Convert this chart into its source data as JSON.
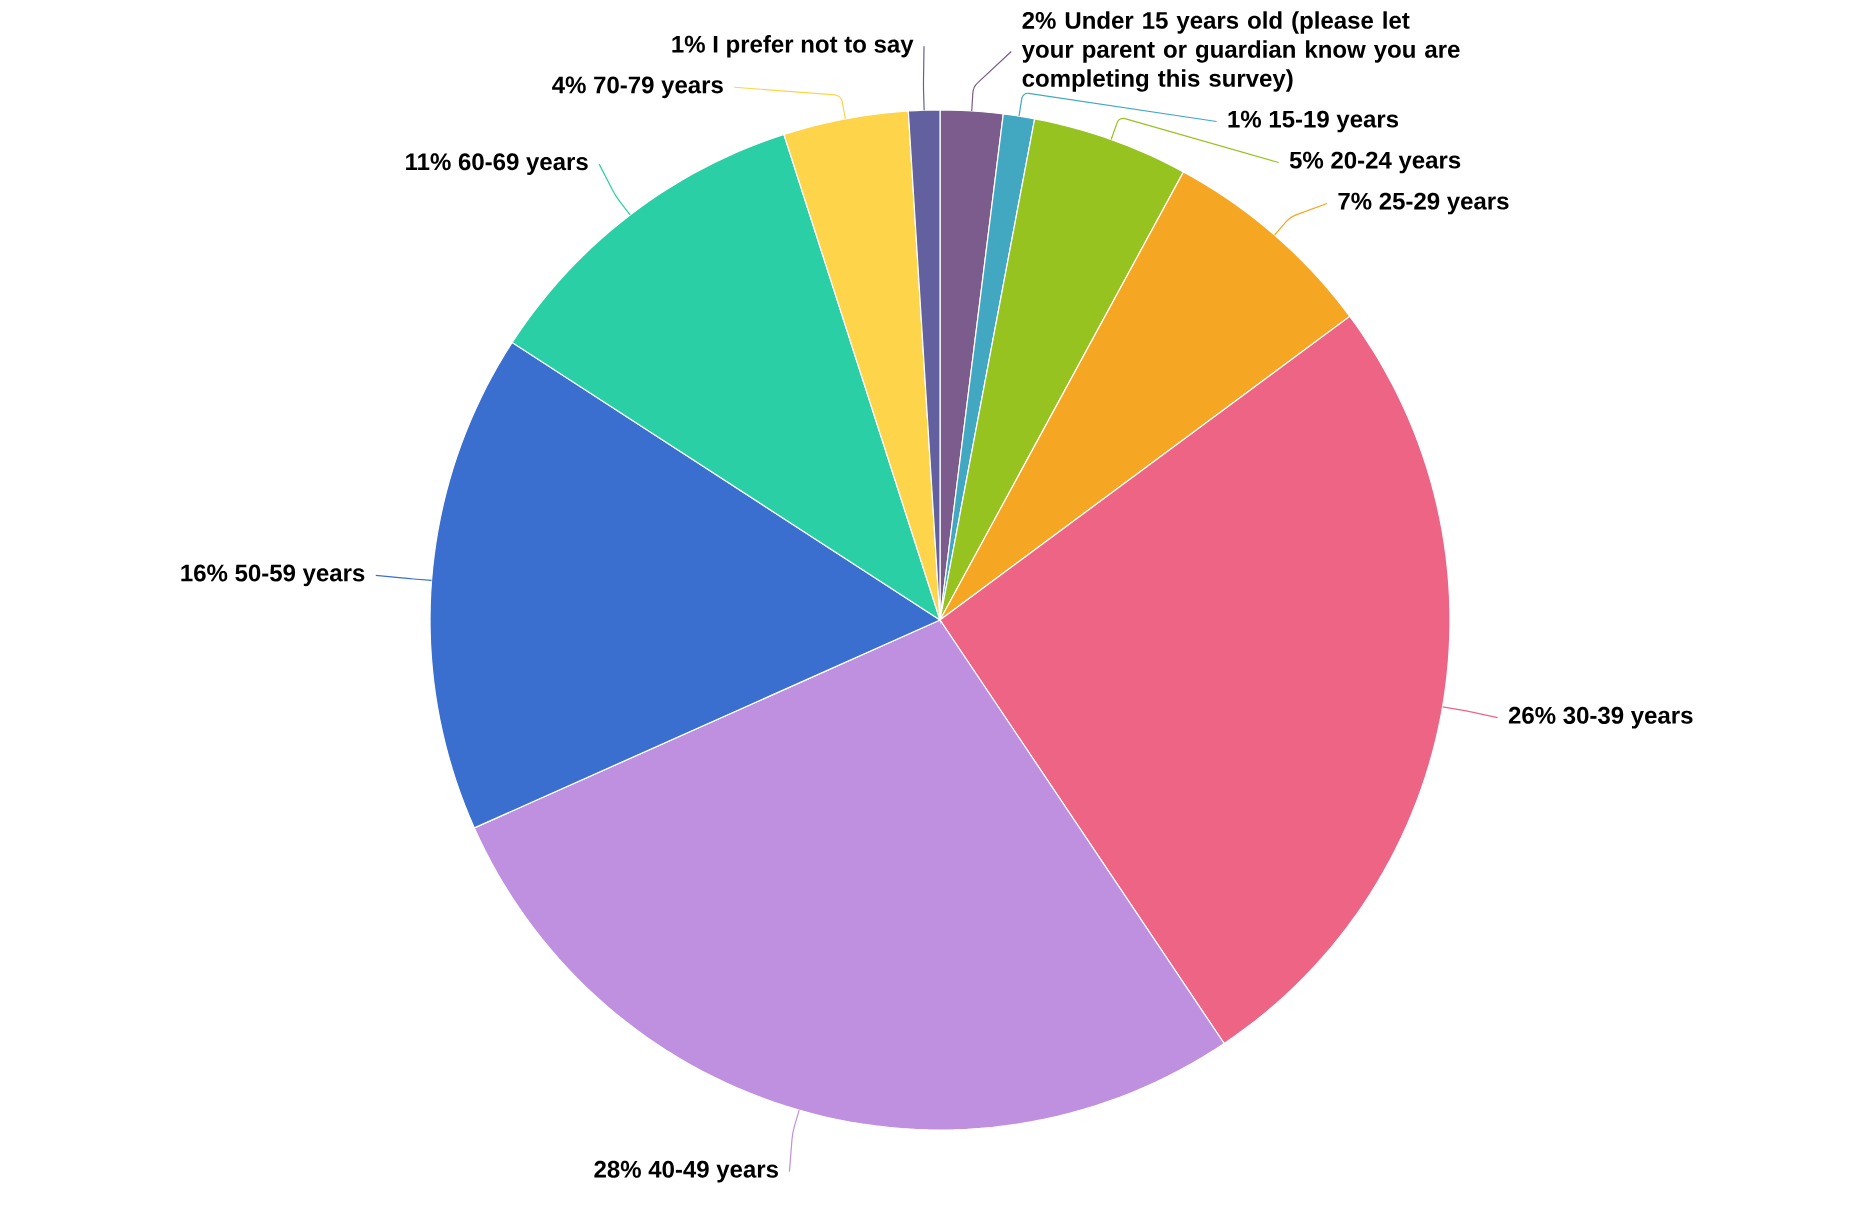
{
  "chart_data": {
    "type": "pie",
    "categories": [
      "Under 15 years old (please let your parent or guardian know you are completing this survey)",
      "15-19 years",
      "20-24 years",
      "25-29 years",
      "30-39 years",
      "40-49 years",
      "50-59 years",
      "60-69 years",
      "70-79 years",
      "I prefer not to say"
    ],
    "values": [
      2,
      1,
      5,
      7,
      26,
      28,
      16,
      11,
      4,
      1
    ],
    "value_labels": [
      "2%",
      "1%",
      "5%",
      "7%",
      "26%",
      "28%",
      "16%",
      "11%",
      "4%",
      "1%"
    ],
    "colors": [
      "#7b5c8c",
      "#42a8c2",
      "#96c320",
      "#f5a623",
      "#ee6485",
      "#bf90e0",
      "#3a6fd0",
      "#2bcfa5",
      "#fdd44a",
      "#62609e"
    ]
  }
}
